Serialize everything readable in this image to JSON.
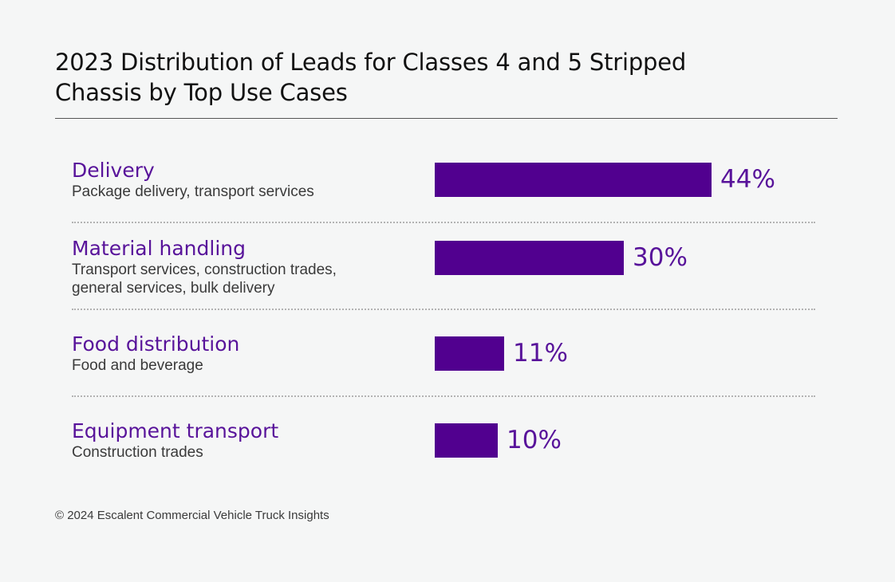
{
  "chart_data": {
    "type": "bar",
    "orientation": "horizontal",
    "title": "2023 Distribution of Leads for Classes 4 and 5 Stripped Chassis by Top Use Cases",
    "title_lines": [
      "2023 Distribution of Leads for Classes 4 and 5 Stripped",
      "Chassis by Top Use Cases"
    ],
    "categories": [
      "Delivery",
      "Material handling",
      "Food distribution",
      "Equipment transport"
    ],
    "subtitles": [
      "Package delivery, transport services",
      "Transport services, construction trades, general services, bulk delivery",
      "Food and beverage",
      "Construction trades"
    ],
    "values": [
      44,
      30,
      11,
      10
    ],
    "value_labels": [
      "44%",
      "30%",
      "11%",
      "10%"
    ],
    "unit": "%",
    "xlim": [
      0,
      100
    ],
    "xlabel": "",
    "ylabel": "",
    "grid": false,
    "legend": "none"
  },
  "colors": {
    "bar": "#51008f",
    "category_text": "#58139a",
    "value_text": "#58139a"
  },
  "footer": "© 2024 Escalent Commercial Vehicle Truck Insights"
}
